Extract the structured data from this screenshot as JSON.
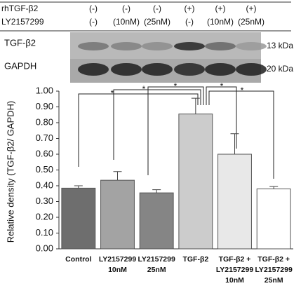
{
  "blot": {
    "row_labels": [
      "rhTGF-β2",
      "LY2157299"
    ],
    "columns": [
      [
        "(-)",
        "(-)"
      ],
      [
        "(-)",
        "(10nM)"
      ],
      [
        "(-)",
        "(25nM)"
      ],
      [
        "(+)",
        "(-)"
      ],
      [
        "(+)",
        "(10nM)"
      ],
      [
        "(+)",
        "(25nM)"
      ]
    ],
    "bands": [
      {
        "name": "TGF-β2",
        "size": "13 kDa"
      },
      {
        "name": "GAPDH",
        "size": "20 kDa"
      }
    ]
  },
  "chart_data": {
    "type": "bar",
    "ylabel": "Relative density (TGF-β2/ GAPDH)",
    "categories": [
      [
        "Control"
      ],
      [
        "LY2157299",
        "10nM"
      ],
      [
        "LY2157299",
        "25nM"
      ],
      [
        "TGF-β2"
      ],
      [
        "TGF-β2 +",
        "LY2157299",
        "10nM"
      ],
      [
        "TGF-β2 +",
        "LY2157299",
        "25nM"
      ]
    ],
    "values": [
      0.385,
      0.435,
      0.355,
      0.855,
      0.6,
      0.38
    ],
    "errors": [
      0.015,
      0.055,
      0.02,
      0.1,
      0.13,
      0.015
    ],
    "colors": [
      "#6e6e6e",
      "#a3a3a3",
      "#858585",
      "#cccccc",
      "#e8e8e8",
      "#ffffff"
    ],
    "ylim": [
      0,
      1
    ],
    "yticks": [
      {
        "value": 0,
        "label": "0.00"
      },
      {
        "value": 0.1,
        "label": "0.10"
      },
      {
        "value": 0.2,
        "label": "0.20"
      },
      {
        "value": 0.3,
        "label": "0.30"
      },
      {
        "value": 0.4,
        "label": "0.40"
      },
      {
        "value": 0.5,
        "label": "0.50"
      },
      {
        "value": 0.6,
        "label": "0.60"
      },
      {
        "value": 0.7,
        "label": "0.70"
      },
      {
        "value": 0.8,
        "label": "0.80"
      },
      {
        "value": 0.9,
        "label": "0.90"
      },
      {
        "value": 1,
        "label": "1.00"
      }
    ],
    "significance_marker": "*"
  }
}
